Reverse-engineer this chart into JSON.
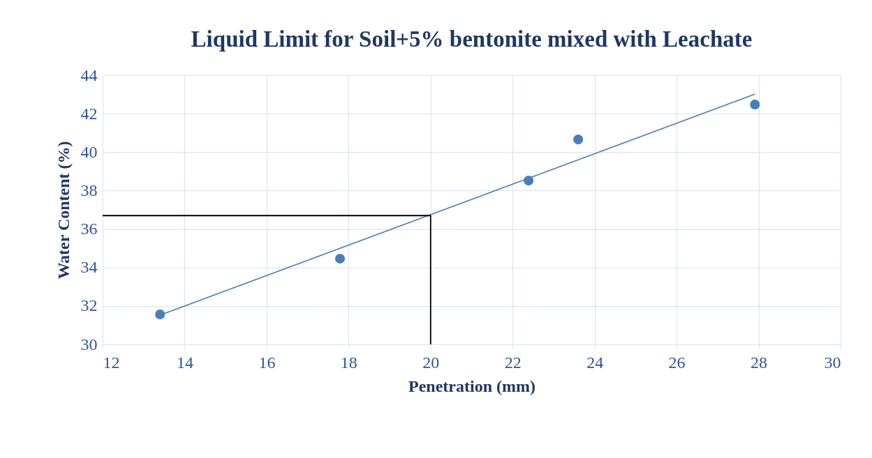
{
  "chart_data": {
    "type": "scatter",
    "title": "Liquid Limit for Soil+5% bentonite mixed with Leachate",
    "xlabel": "Penetration (mm)",
    "ylabel": "Water Content (%)",
    "xlim": [
      12,
      30
    ],
    "xticks": [
      12,
      14,
      16,
      18,
      20,
      22,
      24,
      26,
      28,
      30
    ],
    "ylim": [
      30,
      44
    ],
    "yticks": [
      30,
      32,
      34,
      36,
      38,
      40,
      42,
      44
    ],
    "grid": true,
    "marker": "circle",
    "series": [
      {
        "color": "#4a7ebb",
        "x": [
          13.4,
          17.79,
          22.39,
          23.6,
          27.91
        ],
        "values": [
          31.56,
          34.46,
          38.52,
          40.66,
          42.48
        ]
      },
      {
        "type": "line",
        "marker": "none",
        "color": "#4a7ebb",
        "line_style": "solid",
        "x": [
          13.4,
          27.91
        ],
        "values": [
          31.52,
          43.02
        ]
      },
      {
        "type": "line",
        "marker": "none",
        "color": "#000000",
        "line_style": "solid",
        "x": [
          12,
          20,
          20
        ],
        "values": [
          36.7,
          36.7,
          30
        ]
      }
    ]
  }
}
